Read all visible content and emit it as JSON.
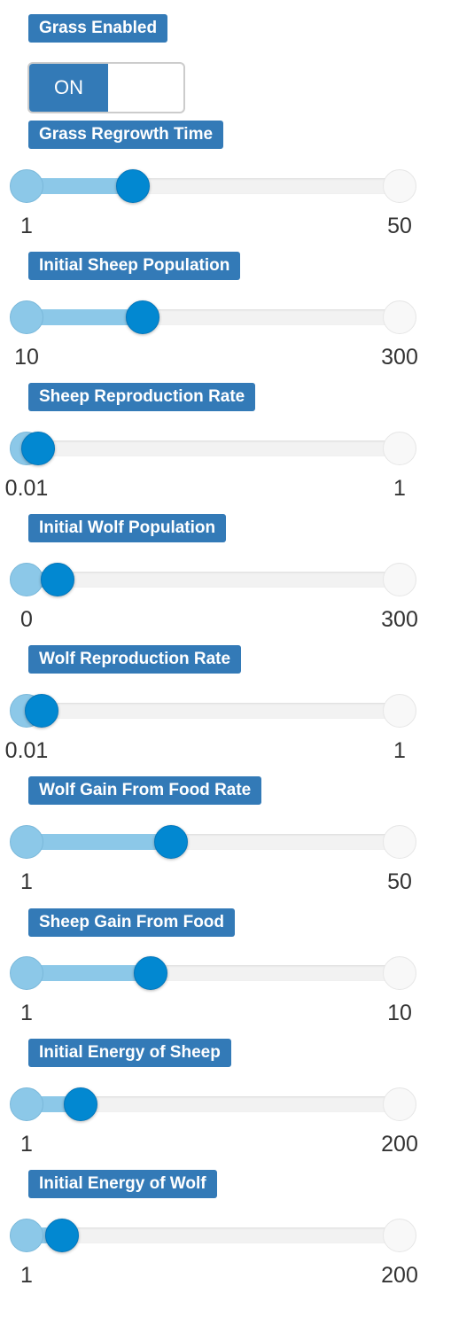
{
  "grass_enabled": {
    "label": "Grass Enabled",
    "state": "ON"
  },
  "sliders": [
    {
      "label": "Grass Regrowth Time",
      "min": 1,
      "max": 50,
      "value": 15,
      "min_label": "1",
      "max_label": "50"
    },
    {
      "label": "Initial Sheep Population",
      "min": 10,
      "max": 300,
      "value": 100,
      "min_label": "10",
      "max_label": "300"
    },
    {
      "label": "Sheep Reproduction Rate",
      "min": 0.01,
      "max": 1,
      "value": 0.04,
      "min_label": "0.01",
      "max_label": "1"
    },
    {
      "label": "Initial Wolf Population",
      "min": 0,
      "max": 300,
      "value": 25,
      "min_label": "0",
      "max_label": "300"
    },
    {
      "label": "Wolf Reproduction Rate",
      "min": 0.01,
      "max": 1,
      "value": 0.05,
      "min_label": "0.01",
      "max_label": "1"
    },
    {
      "label": "Wolf Gain From Food Rate",
      "min": 1,
      "max": 50,
      "value": 20,
      "min_label": "1",
      "max_label": "50"
    },
    {
      "label": "Sheep Gain From Food",
      "min": 1,
      "max": 10,
      "value": 4,
      "min_label": "1",
      "max_label": "10"
    },
    {
      "label": "Initial Energy of Sheep",
      "min": 1,
      "max": 200,
      "value": 30,
      "min_label": "1",
      "max_label": "200"
    },
    {
      "label": "Initial Energy of Wolf",
      "min": 1,
      "max": 200,
      "value": 20,
      "min_label": "1",
      "max_label": "200"
    }
  ],
  "colors": {
    "label_bg": "#337ab7",
    "fill": "#8cc8e8",
    "handle": "#0288d1",
    "track": "#f2f2f2"
  }
}
